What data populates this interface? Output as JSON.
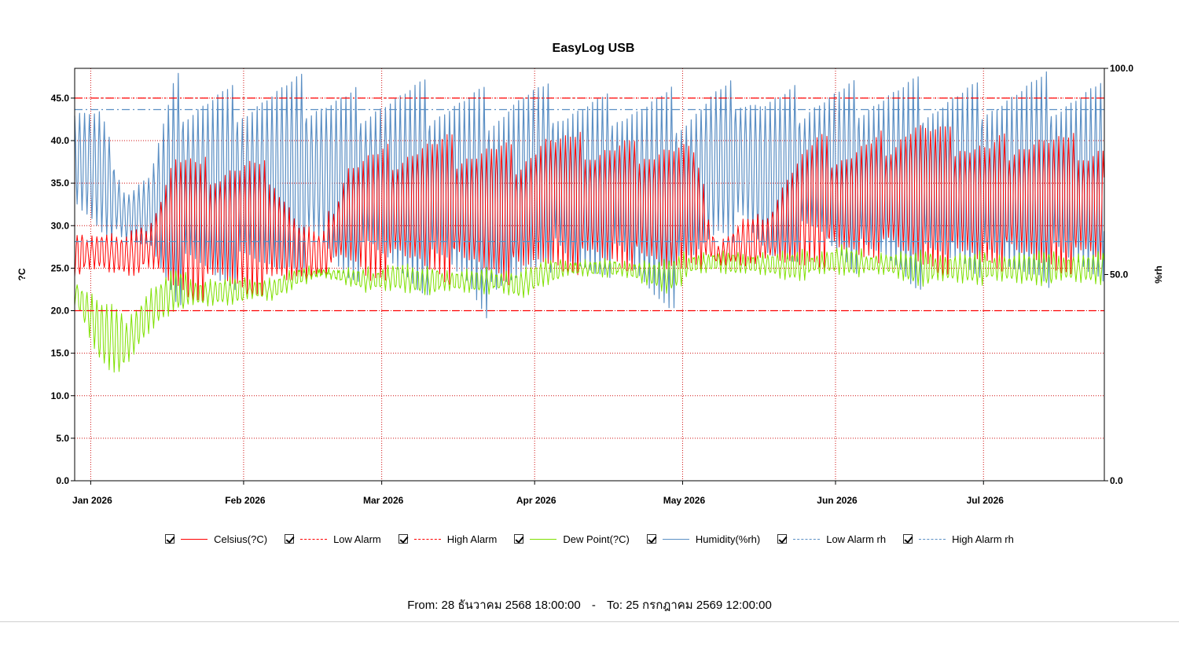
{
  "chart_data": {
    "type": "line",
    "title": "EasyLog USB",
    "xlabel": "",
    "ylabel": "?C",
    "ylabel_right": "%rh",
    "x_range": [
      "2025-12-28T18:00:00",
      "2026-07-25T12:00:00"
    ],
    "ylim": [
      0,
      48.5
    ],
    "ylim_right": [
      0,
      100
    ],
    "y_ticks": [
      "0.0",
      "5.0",
      "10.0",
      "15.0",
      "20.0",
      "25.0",
      "30.0",
      "35.0",
      "40.0",
      "45.0"
    ],
    "y_ticks_right": [
      "0.0",
      "50.0",
      "100.0"
    ],
    "x_ticks": [
      {
        "date": "2026-01-01",
        "label": "Jan 2026"
      },
      {
        "date": "2026-02-01",
        "label": "Feb 2026"
      },
      {
        "date": "2026-03-01",
        "label": "Mar 2026"
      },
      {
        "date": "2026-04-01",
        "label": "Apr 2026"
      },
      {
        "date": "2026-05-01",
        "label": "May 2026"
      },
      {
        "date": "2026-06-01",
        "label": "Jun 2026"
      },
      {
        "date": "2026-07-01",
        "label": "Jul 2026"
      }
    ],
    "grid": true,
    "legend_position": "bottom",
    "thresholds": {
      "low_alarm_c": 20.0,
      "high_alarm_c": 45.0,
      "low_alarm_rh": 58.0,
      "high_alarm_rh": 90.0
    },
    "series": [
      {
        "key": "celsius",
        "name": "Celsius(?C)",
        "color": "#ff0000",
        "style": "solid",
        "x": [
          "2025-12-29",
          "2026-01-03",
          "2026-01-08",
          "2026-01-13",
          "2026-01-18",
          "2026-01-23",
          "2026-01-28",
          "2026-02-02",
          "2026-02-07",
          "2026-02-12",
          "2026-02-17",
          "2026-02-22",
          "2026-02-27",
          "2026-03-04",
          "2026-03-09",
          "2026-03-14",
          "2026-03-19",
          "2026-03-24",
          "2026-03-29",
          "2026-04-03",
          "2026-04-08",
          "2026-04-13",
          "2026-04-18",
          "2026-04-23",
          "2026-04-28",
          "2026-05-03",
          "2026-05-08",
          "2026-05-13",
          "2026-05-18",
          "2026-05-23",
          "2026-05-28",
          "2026-06-02",
          "2026-06-07",
          "2026-06-12",
          "2026-06-17",
          "2026-06-22",
          "2026-06-27",
          "2026-07-02",
          "2026-07-07",
          "2026-07-12",
          "2026-07-17",
          "2026-07-22"
        ],
        "min": [
          24,
          24,
          24,
          24,
          21,
          20.5,
          21,
          20.5,
          21,
          23,
          24,
          24,
          22,
          24,
          24,
          23,
          23,
          23,
          22,
          24,
          24,
          24,
          24,
          23.5,
          23,
          25,
          25,
          25,
          25,
          24,
          25,
          25,
          25,
          25,
          24,
          24,
          24,
          24,
          24,
          24,
          24,
          24
        ],
        "max": [
          29,
          30,
          29,
          31,
          40,
          38,
          39,
          39,
          38,
          31,
          29,
          39,
          40,
          40,
          41,
          41,
          41,
          41,
          40,
          42,
          41,
          41,
          41,
          41,
          41,
          40,
          28,
          31,
          32,
          38,
          41,
          40,
          41,
          42,
          44,
          42,
          42,
          41,
          42,
          42,
          41,
          41
        ]
      },
      {
        "key": "low_alarm",
        "name": "Low Alarm",
        "color": "#ff0000",
        "style": "dash"
      },
      {
        "key": "high_alarm",
        "name": "High Alarm",
        "color": "#ff0000",
        "style": "dashdot"
      },
      {
        "key": "dew",
        "name": "Dew Point(?C)",
        "color": "#7fe000",
        "style": "solid",
        "x": [
          "2025-12-29",
          "2026-01-03",
          "2026-01-08",
          "2026-01-13",
          "2026-01-18",
          "2026-01-23",
          "2026-01-28",
          "2026-02-02",
          "2026-02-07",
          "2026-02-12",
          "2026-02-17",
          "2026-02-22",
          "2026-02-27",
          "2026-03-04",
          "2026-03-09",
          "2026-03-14",
          "2026-03-19",
          "2026-03-24",
          "2026-03-29",
          "2026-04-03",
          "2026-04-08",
          "2026-04-13",
          "2026-04-18",
          "2026-04-23",
          "2026-04-28",
          "2026-05-03",
          "2026-05-08",
          "2026-05-13",
          "2026-05-18",
          "2026-05-23",
          "2026-05-28",
          "2026-06-02",
          "2026-06-07",
          "2026-06-12",
          "2026-06-17",
          "2026-06-22",
          "2026-06-27",
          "2026-07-02",
          "2026-07-07",
          "2026-07-12",
          "2026-07-17",
          "2026-07-22"
        ],
        "min": [
          20,
          13,
          12,
          17,
          20,
          20,
          20.5,
          21,
          21,
          23,
          24,
          23,
          22,
          22,
          22,
          22,
          22,
          22,
          21,
          23,
          24,
          24,
          24,
          23,
          22,
          24,
          24.5,
          24,
          24,
          23.5,
          24,
          24,
          24,
          24,
          23,
          23,
          23,
          23,
          23,
          23,
          23,
          23
        ],
        "max": [
          24,
          22,
          20,
          23,
          25,
          24,
          24,
          24,
          24,
          25,
          25,
          25,
          25,
          26,
          25,
          25,
          25,
          25,
          25,
          26,
          26,
          26,
          26,
          26,
          26,
          27,
          27,
          27,
          27,
          27,
          27,
          28,
          27,
          27,
          27,
          27,
          27,
          27,
          27,
          27,
          27,
          27
        ]
      },
      {
        "key": "humidity",
        "name": "Humidity(%rh)",
        "color": "#5b8fc4",
        "style": "solid",
        "x": [
          "2025-12-29",
          "2026-01-03",
          "2026-01-08",
          "2026-01-13",
          "2026-01-18",
          "2026-01-23",
          "2026-01-28",
          "2026-02-02",
          "2026-02-07",
          "2026-02-12",
          "2026-02-17",
          "2026-02-22",
          "2026-02-27",
          "2026-03-04",
          "2026-03-09",
          "2026-03-14",
          "2026-03-19",
          "2026-03-24",
          "2026-03-29",
          "2026-04-03",
          "2026-04-08",
          "2026-04-13",
          "2026-04-18",
          "2026-04-23",
          "2026-04-28",
          "2026-05-03",
          "2026-05-08",
          "2026-05-13",
          "2026-05-18",
          "2026-05-23",
          "2026-05-28",
          "2026-06-02",
          "2026-06-07",
          "2026-06-12",
          "2026-06-17",
          "2026-06-22",
          "2026-06-27",
          "2026-07-02",
          "2026-07-07",
          "2026-07-12",
          "2026-07-17",
          "2026-07-22"
        ],
        "min": [
          62,
          58,
          55,
          55,
          42,
          44,
          43,
          44,
          46,
          50,
          50,
          44,
          48,
          46,
          44,
          45,
          42,
          34,
          44,
          52,
          44,
          46,
          48,
          42,
          40,
          46,
          57,
          56,
          50,
          52,
          54,
          50,
          47,
          48,
          45,
          46,
          48,
          46,
          45,
          48,
          46,
          46
        ],
        "max": [
          94,
          92,
          72,
          76,
          99,
          99,
          99,
          99,
          99,
          99,
          98,
          98,
          98,
          98,
          98,
          98,
          98,
          98,
          98,
          97,
          97,
          96,
          96,
          96,
          96,
          96,
          98,
          99,
          96,
          96,
          98,
          99,
          99,
          99,
          99,
          99,
          99,
          99,
          99,
          99,
          99,
          99
        ]
      },
      {
        "key": "low_alarm_rh",
        "name": "Low Alarm rh",
        "color": "#5b8fc4",
        "style": "dash"
      },
      {
        "key": "high_alarm_rh",
        "name": "High Alarm rh",
        "color": "#5b8fc4",
        "style": "dashdot"
      }
    ]
  },
  "range": {
    "from_label": "From:",
    "from_value": "28 ธันวาคม 2568 18:00:00",
    "separator": "-",
    "to_label": "To:",
    "to_value": "25 กรกฎาคม 2569 12:00:00"
  }
}
